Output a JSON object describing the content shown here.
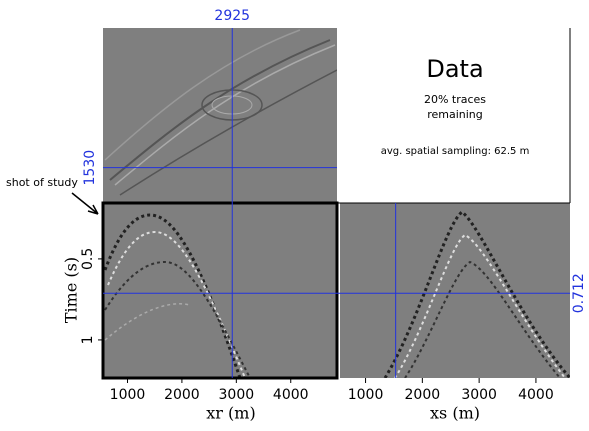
{
  "title": "Data",
  "subtitle": "20% traces remaining",
  "note": "avg. spatial sampling:  62.5 m",
  "annotation": "shot of study",
  "axes": {
    "xr": {
      "label": "xr (m)",
      "lim": [
        550,
        4850
      ],
      "ticks": [
        1000,
        2000,
        3000,
        4000
      ]
    },
    "xs": {
      "label": "xs (m)",
      "lim": [
        550,
        4600
      ],
      "ticks": [
        1000,
        2000,
        3000,
        4000
      ]
    },
    "time": {
      "label": "Time (s)",
      "lim": [
        0.155,
        1.235
      ],
      "ticks": [
        0.5,
        1
      ]
    },
    "xs_top": {
      "lim": [
        1000,
        3625
      ]
    }
  },
  "crosshair": {
    "xr": 2925,
    "xs": 1530,
    "time": 0.712
  }
}
